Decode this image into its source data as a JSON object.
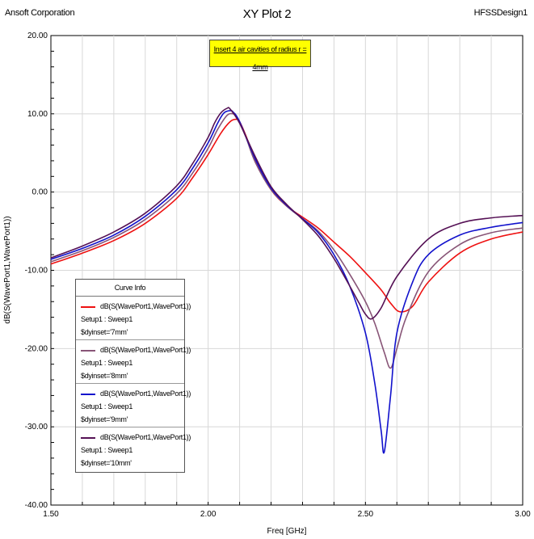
{
  "header": {
    "left": "Ansoft Corporation",
    "title": "XY Plot 2",
    "right": "HFSSDesign1"
  },
  "annotation": "Insert 4 air cavities of radius r = 4mm",
  "chart_data": {
    "type": "line",
    "title": "XY Plot 2",
    "xlabel": "Freq [GHz]",
    "ylabel": "dB(S(WavePort1,WavePort1))",
    "xlim": [
      1.5,
      3.0
    ],
    "ylim": [
      -40,
      20
    ],
    "x_ticks": [
      "1.50",
      "2.00",
      "2.50",
      "3.00"
    ],
    "y_ticks": [
      "20.00",
      "10.00",
      "0.00",
      "-10.00",
      "-20.00",
      "-30.00",
      "-40.00"
    ],
    "grid": true,
    "legend": {
      "title": "Curve Info",
      "placement": "lower-left",
      "entries": [
        {
          "label": "dB(S(WavePort1,WavePort1))",
          "setup": "Setup1 : Sweep1",
          "param": "$dyinset='7mm'",
          "color": "#ee1111"
        },
        {
          "label": "dB(S(WavePort1,WavePort1))",
          "setup": "Setup1 : Sweep1",
          "param": "$dyinset='8mm'",
          "color": "#885577"
        },
        {
          "label": "dB(S(WavePort1,WavePort1))",
          "setup": "Setup1 : Sweep1",
          "param": "$dyinset='9mm'",
          "color": "#1111cc"
        },
        {
          "label": "dB(S(WavePort1,WavePort1))",
          "setup": "Setup1 : Sweep1",
          "param": "$dyinset='10mm'",
          "color": "#551155"
        }
      ]
    },
    "series": [
      {
        "name": "$dyinset='7mm'",
        "color": "#ee1111",
        "x": [
          1.5,
          1.6,
          1.7,
          1.8,
          1.9,
          1.95,
          2.0,
          2.04,
          2.07,
          2.09,
          2.1,
          2.12,
          2.15,
          2.2,
          2.25,
          2.3,
          2.35,
          2.4,
          2.45,
          2.5,
          2.55,
          2.58,
          2.61,
          2.65,
          2.7,
          2.8,
          2.9,
          3.0
        ],
        "y": [
          -9.2,
          -7.8,
          -6.2,
          -4.0,
          -0.8,
          1.8,
          4.8,
          7.5,
          9.0,
          9.3,
          9.0,
          7.2,
          4.0,
          0.3,
          -1.8,
          -3.2,
          -4.6,
          -6.4,
          -8.2,
          -10.3,
          -12.5,
          -14.2,
          -15.3,
          -14.6,
          -11.5,
          -7.8,
          -6.0,
          -5.1
        ]
      },
      {
        "name": "$dyinset='8mm'",
        "color": "#885577",
        "x": [
          1.5,
          1.6,
          1.7,
          1.8,
          1.9,
          1.95,
          2.0,
          2.03,
          2.06,
          2.08,
          2.09,
          2.12,
          2.15,
          2.2,
          2.25,
          2.3,
          2.35,
          2.4,
          2.45,
          2.5,
          2.53,
          2.56,
          2.58,
          2.6,
          2.63,
          2.7,
          2.8,
          2.9,
          3.0
        ],
        "y": [
          -8.9,
          -7.5,
          -5.8,
          -3.5,
          -0.2,
          2.4,
          5.6,
          8.0,
          9.8,
          10.0,
          9.7,
          7.0,
          3.8,
          0.3,
          -1.8,
          -3.4,
          -5.0,
          -7.4,
          -10.5,
          -14.0,
          -16.8,
          -20.5,
          -22.5,
          -20.0,
          -16.0,
          -10.2,
          -6.7,
          -5.2,
          -4.6
        ]
      },
      {
        "name": "$dyinset='9mm'",
        "color": "#1111cc",
        "x": [
          1.5,
          1.6,
          1.7,
          1.8,
          1.9,
          1.95,
          2.0,
          2.03,
          2.05,
          2.07,
          2.08,
          2.1,
          2.15,
          2.2,
          2.25,
          2.3,
          2.35,
          2.4,
          2.45,
          2.5,
          2.53,
          2.55,
          2.56,
          2.58,
          2.6,
          2.65,
          2.7,
          2.8,
          2.9,
          3.0
        ],
        "y": [
          -8.6,
          -7.2,
          -5.5,
          -3.1,
          0.3,
          3.0,
          6.3,
          8.8,
          10.1,
          10.4,
          10.2,
          9.0,
          4.2,
          0.5,
          -1.7,
          -3.4,
          -5.2,
          -8.0,
          -12.0,
          -18.0,
          -24.5,
          -30.5,
          -33.2,
          -26.0,
          -18.0,
          -11.5,
          -8.0,
          -5.5,
          -4.5,
          -3.9
        ]
      },
      {
        "name": "$dyinset='10mm'",
        "color": "#551155",
        "x": [
          1.5,
          1.6,
          1.7,
          1.8,
          1.9,
          1.95,
          2.0,
          2.02,
          2.04,
          2.06,
          2.07,
          2.1,
          2.15,
          2.2,
          2.25,
          2.3,
          2.35,
          2.4,
          2.45,
          2.48,
          2.5,
          2.52,
          2.55,
          2.6,
          2.7,
          2.8,
          2.9,
          3.0
        ],
        "y": [
          -8.4,
          -6.9,
          -5.1,
          -2.7,
          0.8,
          3.6,
          7.0,
          8.8,
          10.1,
          10.7,
          10.6,
          8.8,
          4.5,
          0.7,
          -1.6,
          -3.5,
          -5.6,
          -8.5,
          -12.0,
          -14.2,
          -15.6,
          -16.2,
          -14.8,
          -10.8,
          -6.0,
          -4.0,
          -3.3,
          -3.0
        ]
      }
    ]
  }
}
